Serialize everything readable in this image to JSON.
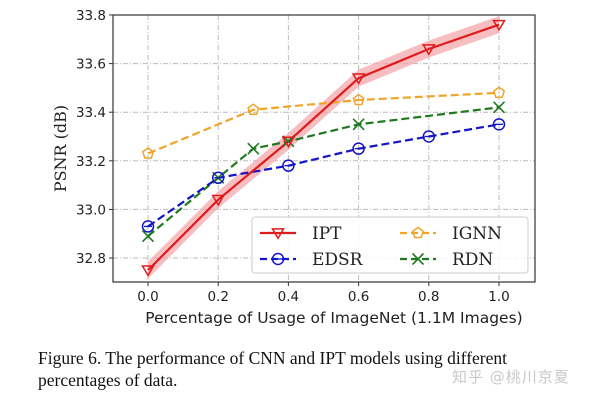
{
  "chart_data": {
    "type": "line",
    "title": "",
    "xlabel": "Percentage of Usage of ImageNet (1.1M Images)",
    "ylabel": "PSNR (dB)",
    "xlim": [
      -0.1,
      1.1
    ],
    "ylim": [
      32.7,
      33.8
    ],
    "xticks": [
      0.0,
      0.2,
      0.4,
      0.6,
      0.8,
      1.0
    ],
    "xtick_labels": [
      "0.0",
      "0.2",
      "0.4",
      "0.6",
      "0.8",
      "1.0"
    ],
    "yticks": [
      32.8,
      33.0,
      33.2,
      33.4,
      33.6,
      33.8
    ],
    "ytick_labels": [
      "32.8",
      "33.0",
      "33.2",
      "33.4",
      "33.6",
      "33.8"
    ],
    "grid": true,
    "legend_position": "lower-right",
    "series": [
      {
        "name": "IPT",
        "color": "#e01b1b",
        "style": "solid",
        "marker": "triangle-down",
        "band": true,
        "band_color": "#f4a3a8",
        "x": [
          0.0,
          0.2,
          0.4,
          0.6,
          0.8,
          1.0
        ],
        "values": [
          32.75,
          33.04,
          33.28,
          33.54,
          33.66,
          33.76
        ]
      },
      {
        "name": "EDSR",
        "color": "#1414c8",
        "style": "dashed",
        "marker": "circle",
        "x": [
          0.0,
          0.2,
          0.4,
          0.6,
          0.8,
          1.0
        ],
        "values": [
          32.93,
          33.13,
          33.18,
          33.25,
          33.3,
          33.35
        ]
      },
      {
        "name": "IGNN",
        "color": "#f0a52a",
        "style": "dashed",
        "marker": "pentagon",
        "x": [
          0.0,
          0.3,
          0.6,
          1.0
        ],
        "values": [
          33.23,
          33.41,
          33.45,
          33.48
        ]
      },
      {
        "name": "RDN",
        "color": "#1f7a1f",
        "style": "dashed",
        "marker": "x",
        "x": [
          0.0,
          0.2,
          0.3,
          0.4,
          0.6,
          1.0
        ],
        "values": [
          32.89,
          33.13,
          33.25,
          33.28,
          33.35,
          33.42
        ]
      }
    ]
  },
  "caption": "Figure 6. The performance of CNN and IPT models using different percentages of data.",
  "watermark": "知乎 @桃川京夏"
}
